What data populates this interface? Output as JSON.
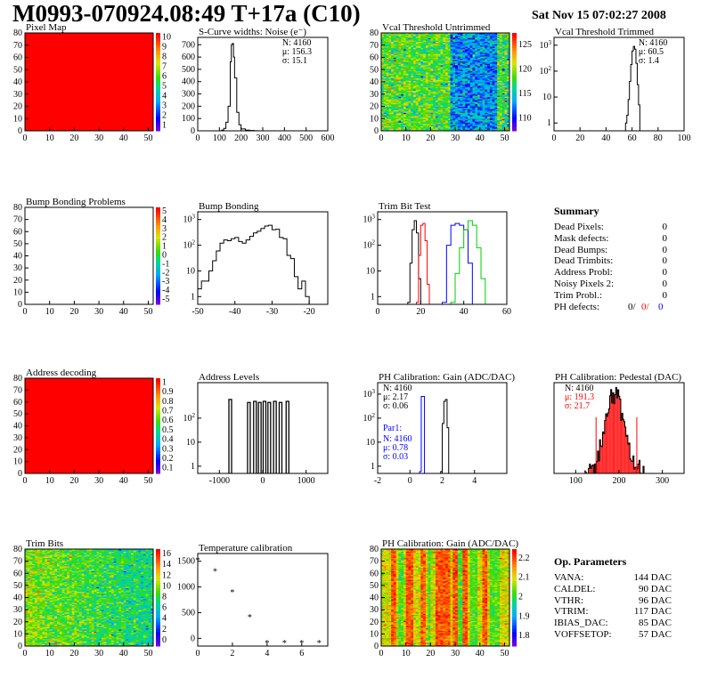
{
  "page": {
    "title": "M0993-070924.08:49 T+17a (C10)",
    "date": "Sat Nov 15 07:02:27 2008"
  },
  "summary": {
    "heading": "Summary",
    "rows": [
      {
        "label": "Dead Pixels:",
        "value": "0"
      },
      {
        "label": "Mask defects:",
        "value": "0"
      },
      {
        "label": "Dead Bumps:",
        "value": "0"
      },
      {
        "label": "Dead Trimbits:",
        "value": "0"
      },
      {
        "label": "Address Probl:",
        "value": "0"
      },
      {
        "label": "Noisy Pixels 2:",
        "value": "0"
      },
      {
        "label": "Trim Probl.:",
        "value": "0"
      }
    ],
    "ph_defects": {
      "label": "PH defects:",
      "v1": "0/",
      "v2": "0/",
      "v3": "0"
    }
  },
  "params": {
    "heading": "Op. Parameters",
    "rows": [
      {
        "label": "VANA:",
        "value": "144 DAC"
      },
      {
        "label": "CALDEL:",
        "value": "90 DAC"
      },
      {
        "label": "VTHR:",
        "value": "96 DAC"
      },
      {
        "label": "VTRIM:",
        "value": "117 DAC"
      },
      {
        "label": "IBIAS_DAC:",
        "value": "85 DAC"
      },
      {
        "label": "VOFFSETOP:",
        "value": "57 DAC"
      }
    ]
  },
  "colors": {
    "red": "#ff0000",
    "blue": "#0000ff",
    "green": "#00cc00",
    "hist": "#000000"
  },
  "chart_data": [
    {
      "id": "pixel_map",
      "type": "heatmap",
      "title": "Pixel Map",
      "xlim": [
        0,
        52
      ],
      "ylim": [
        0,
        80
      ],
      "xticks": [
        0,
        10,
        20,
        30,
        40,
        50
      ],
      "yticks": [
        0,
        10,
        20,
        30,
        40,
        50,
        60,
        70,
        80
      ],
      "fill": "uniform",
      "value": 10,
      "zlim": [
        0,
        10
      ],
      "zticks": [
        "1",
        "2",
        "3",
        "4",
        "5",
        "6",
        "7",
        "8",
        "9",
        "10"
      ]
    },
    {
      "id": "scurve",
      "type": "histogram",
      "title": "S-Curve widths: Noise (e⁻)",
      "xlim": [
        0,
        600
      ],
      "ylim": [
        0,
        760
      ],
      "xticks": [
        0,
        100,
        200,
        300,
        400,
        500,
        600
      ],
      "yticks": [
        0,
        100,
        200,
        300,
        400,
        500,
        600,
        700
      ],
      "stats": [
        "N: 4160",
        "μ: 156.3",
        "σ: 15.1"
      ],
      "series": [
        {
          "x": [
            100,
            110,
            120,
            130,
            140,
            150,
            155,
            160,
            165,
            170,
            180,
            190,
            200,
            220,
            240,
            260,
            280
          ],
          "y": [
            0,
            5,
            20,
            70,
            200,
            560,
            700,
            710,
            600,
            430,
            150,
            50,
            15,
            5,
            3,
            1,
            0
          ]
        }
      ]
    },
    {
      "id": "vcal_untrimmed",
      "type": "heatmap",
      "title": "Vcal Threshold Untrimmed",
      "xlim": [
        0,
        52
      ],
      "ylim": [
        0,
        80
      ],
      "xticks": [
        0,
        10,
        20,
        30,
        40,
        50
      ],
      "yticks": [
        0,
        10,
        20,
        30,
        40,
        50,
        60,
        70,
        80
      ],
      "fill": "noise-cold-band",
      "zticks": [
        "110",
        "115",
        "120",
        "125"
      ]
    },
    {
      "id": "vcal_trimmed",
      "type": "histogram",
      "title": "Vcal Threshold Trimmed",
      "log": true,
      "xlim": [
        0,
        100
      ],
      "ylim": [
        0.5,
        2000
      ],
      "xticks": [
        0,
        20,
        40,
        60,
        80,
        100
      ],
      "yticks": [
        1,
        10,
        100,
        1000
      ],
      "stats": [
        "N: 4160",
        "μ:  60.5",
        "σ:  1.4"
      ],
      "series": [
        {
          "x": [
            55,
            56,
            57,
            58,
            59,
            60,
            61,
            62,
            63,
            64,
            65,
            66
          ],
          "y": [
            1,
            2,
            8,
            40,
            180,
            600,
            900,
            700,
            200,
            30,
            5,
            1
          ]
        }
      ]
    },
    {
      "id": "bump_bonding_problems",
      "type": "heatmap",
      "title": "Bump Bonding Problems",
      "xlim": [
        0,
        52
      ],
      "ylim": [
        0,
        80
      ],
      "xticks": [
        0,
        10,
        20,
        30,
        40,
        50
      ],
      "yticks": [
        0,
        10,
        20,
        30,
        40,
        50,
        60,
        70,
        80
      ],
      "fill": "empty",
      "zticks": [
        "-5",
        "-4",
        "-3",
        "-2",
        "-1",
        "0",
        "1",
        "2",
        "3",
        "4",
        "5"
      ]
    },
    {
      "id": "bump_bonding",
      "type": "histogram",
      "title": "Bump Bonding",
      "log": true,
      "xlim": [
        -50,
        -15
      ],
      "ylim": [
        0.5,
        2000
      ],
      "xticks": [
        -50,
        -40,
        -30,
        -20
      ],
      "yticks": [
        1,
        10,
        100,
        1000
      ],
      "series": [
        {
          "x": [
            -50,
            -49,
            -48,
            -47,
            -46,
            -45,
            -44,
            -43,
            -42,
            -41,
            -40,
            -39,
            -38,
            -37,
            -36,
            -35,
            -34,
            -33,
            -32,
            -31,
            -30,
            -29,
            -28,
            -27,
            -26,
            -25,
            -24,
            -23,
            -22,
            -21,
            -20
          ],
          "y": [
            2,
            4,
            4,
            10,
            25,
            60,
            120,
            160,
            150,
            180,
            200,
            140,
            120,
            160,
            220,
            300,
            350,
            450,
            560,
            600,
            400,
            420,
            200,
            180,
            40,
            30,
            6,
            2,
            4,
            1,
            0.6
          ]
        }
      ]
    },
    {
      "id": "trim_bit_test",
      "type": "histogram",
      "title": "Trim Bit Test",
      "log": true,
      "xlim": [
        0,
        60
      ],
      "ylim": [
        0.5,
        2000
      ],
      "xticks": [
        0,
        20,
        40,
        60
      ],
      "yticks": [
        1,
        10,
        100,
        1000
      ],
      "series": [
        {
          "color": "#000000",
          "x": [
            14,
            15,
            16,
            17,
            18,
            19,
            20
          ],
          "y": [
            0.6,
            20,
            400,
            900,
            300,
            5,
            0.6
          ]
        },
        {
          "color": "#ff0000",
          "x": [
            18,
            19,
            20,
            21,
            22,
            23,
            24
          ],
          "y": [
            0.6,
            40,
            600,
            700,
            150,
            3,
            0.6
          ]
        },
        {
          "color": "#0000ff",
          "x": [
            30,
            32,
            34,
            36,
            38,
            40,
            42,
            44
          ],
          "y": [
            0.6,
            100,
            600,
            700,
            600,
            400,
            20,
            0.6
          ]
        },
        {
          "color": "#00cc00",
          "x": [
            34,
            36,
            38,
            40,
            42,
            44,
            46,
            48,
            50
          ],
          "y": [
            0.6,
            8,
            80,
            400,
            900,
            600,
            80,
            5,
            0.6
          ]
        }
      ]
    },
    {
      "id": "address_decoding",
      "type": "heatmap",
      "title": "Address decoding",
      "xlim": [
        0,
        52
      ],
      "ylim": [
        0,
        80
      ],
      "xticks": [
        0,
        10,
        20,
        30,
        40,
        50
      ],
      "yticks": [
        0,
        10,
        20,
        30,
        40,
        50,
        60,
        70,
        80
      ],
      "fill": "uniform",
      "value": 1,
      "zticks": [
        "0.1",
        "0.2",
        "0.3",
        "0.4",
        "0.5",
        "0.6",
        "0.7",
        "0.8",
        "0.9",
        "1"
      ]
    },
    {
      "id": "address_levels",
      "type": "histogram",
      "title": "Address Levels",
      "log": true,
      "xlim": [
        -1500,
        1500
      ],
      "ylim": [
        0.5,
        3000
      ],
      "xticks": [
        -1000,
        0,
        1000
      ],
      "yticks": [
        1,
        10,
        100
      ],
      "peaks": [
        -760,
        -330,
        -190,
        -80,
        30,
        140,
        270,
        400,
        560
      ],
      "peak_heights": [
        600,
        450,
        500,
        450,
        500,
        450,
        500,
        450,
        500
      ]
    },
    {
      "id": "ph_gain",
      "type": "histogram",
      "title": "PH Calibration: Gain (ADC/DAC)",
      "log": true,
      "xlim": [
        -2,
        6
      ],
      "ylim": [
        0.5,
        3000
      ],
      "xticks": [
        -2,
        0,
        2,
        4
      ],
      "yticks": [
        1,
        10,
        100,
        1000
      ],
      "stats": [
        "N: 4160",
        "μ: 2.17",
        "σ: 0.06"
      ],
      "stats2_title": "Par1:",
      "stats2": [
        "N: 4160",
        "μ: 0.78",
        "σ: 0.03"
      ],
      "series": [
        {
          "color": "#000000",
          "x": [
            1.9,
            2.0,
            2.1,
            2.2,
            2.3,
            2.4
          ],
          "y": [
            0.6,
            60,
            500,
            600,
            40,
            0.6
          ]
        },
        {
          "color": "#0000ff",
          "x": [
            0.6,
            0.7,
            0.8,
            0.9
          ],
          "y": [
            0.6,
            800,
            800,
            0.6
          ]
        }
      ]
    },
    {
      "id": "ph_pedestal",
      "type": "histogram",
      "title": "PH Calibration: Pedestal (DAC)",
      "xlim": [
        50,
        350
      ],
      "ylim": [
        0,
        100
      ],
      "xticks": [
        100,
        200,
        300
      ],
      "stats": [
        "N: 4160",
        "μ: 191.3",
        "σ: 21.7"
      ],
      "bins": 60
    },
    {
      "id": "trim_bits",
      "type": "heatmap",
      "title": "Trim Bits",
      "xlim": [
        0,
        52
      ],
      "ylim": [
        0,
        80
      ],
      "xticks": [
        0,
        10,
        20,
        30,
        40,
        50
      ],
      "yticks": [
        0,
        10,
        20,
        30,
        40,
        50,
        60,
        70,
        80
      ],
      "fill": "noise-gradient",
      "zticks": [
        "0",
        "2",
        "4",
        "6",
        "8",
        "10",
        "12",
        "14",
        "16"
      ]
    },
    {
      "id": "temperature_calibration",
      "type": "scatter",
      "title": "Temperature calibration",
      "xlim": [
        0,
        7.5
      ],
      "ylim": [
        -150,
        1650
      ],
      "xticks": [
        0,
        2,
        4,
        6
      ],
      "yticks": [
        0,
        500,
        1000,
        1500
      ],
      "points": [
        [
          0,
          1550
        ],
        [
          1,
          1330
        ],
        [
          2,
          920
        ],
        [
          3,
          440
        ],
        [
          4,
          -60
        ],
        [
          5,
          -60
        ],
        [
          6,
          -60
        ],
        [
          7,
          -60
        ]
      ]
    },
    {
      "id": "ph_gain_map",
      "type": "heatmap",
      "title": "PH Calibration: Gain (ADC/DAC)",
      "xlim": [
        0,
        52
      ],
      "ylim": [
        0,
        80
      ],
      "xticks": [
        0,
        10,
        20,
        30,
        40,
        50
      ],
      "yticks": [
        0,
        10,
        20,
        30,
        40,
        50,
        60,
        70,
        80
      ],
      "fill": "column-stripes",
      "zticks": [
        "1.8",
        "1.9",
        "2",
        "2.1",
        "2.2"
      ]
    }
  ]
}
